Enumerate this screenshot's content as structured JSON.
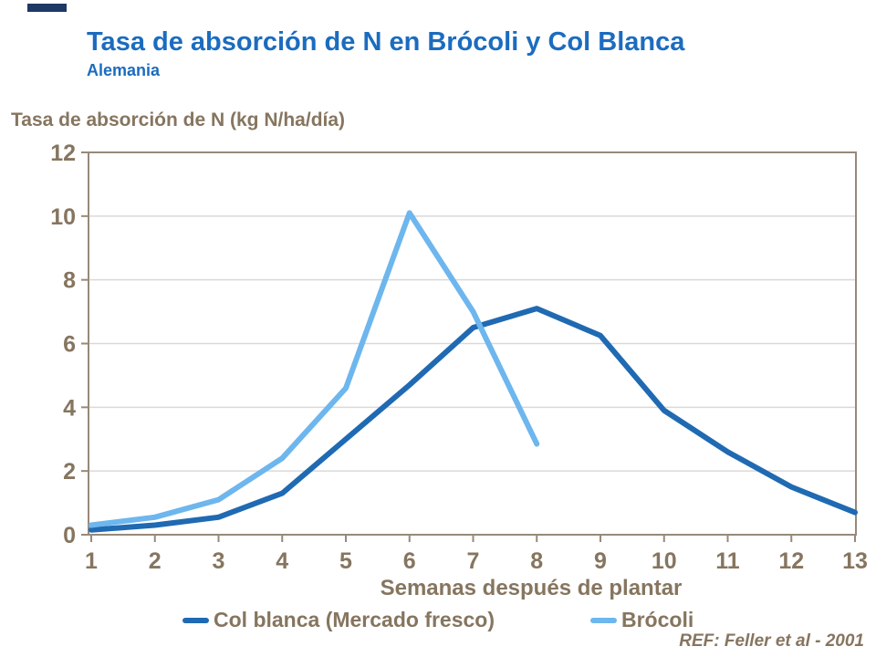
{
  "header": {
    "title": "Tasa de absorción de N en Brócoli y Col Blanca",
    "subtitle": "Alemania"
  },
  "reference": "REF: Feller et al - 2001",
  "colors": {
    "title_blue": "#1b6cbf",
    "axis_text_brown": "#86755f",
    "axis_line_brown": "#97897a",
    "gridline_gray": "#d9d9d9",
    "col_blanca_blue": "#1f6ab2",
    "brocoli_light_blue": "#6db6ee",
    "corner_mark_navy": "#1f3864"
  },
  "chart_data": {
    "type": "line",
    "title": "Tasa de absorción de N en Brócoli y Col Blanca",
    "subtitle": "Alemania",
    "ylabel": "Tasa de absorción de N (kg N/ha/día)",
    "xlabel": "Semanas después de plantar",
    "ylim": [
      0,
      12
    ],
    "xlim": [
      1,
      13
    ],
    "y_ticks": [
      0,
      2,
      4,
      6,
      8,
      10,
      12
    ],
    "x_ticks": [
      1,
      2,
      3,
      4,
      5,
      6,
      7,
      8,
      9,
      10,
      11,
      12,
      13
    ],
    "grid": true,
    "legend_position": "bottom",
    "series": [
      {
        "name": "Col blanca (Mercado fresco)",
        "color": "#1f6ab2",
        "x": [
          1,
          2,
          3,
          4,
          5,
          6,
          7,
          8,
          9,
          10,
          11,
          12,
          13
        ],
        "values": [
          0.15,
          0.3,
          0.55,
          1.3,
          3.0,
          4.7,
          6.5,
          7.1,
          6.25,
          3.9,
          2.6,
          1.5,
          0.7
        ]
      },
      {
        "name": "Brócoli",
        "color": "#6db6ee",
        "x": [
          1,
          2,
          3,
          4,
          5,
          6,
          7,
          8
        ],
        "values": [
          0.3,
          0.55,
          1.1,
          2.4,
          4.6,
          10.1,
          7.0,
          2.85
        ]
      }
    ]
  }
}
